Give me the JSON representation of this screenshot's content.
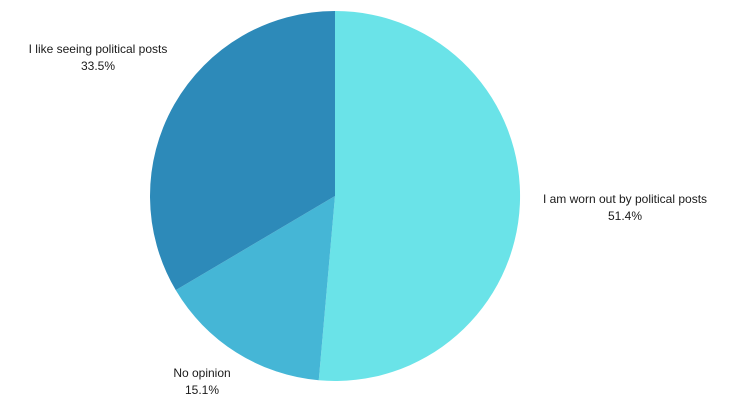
{
  "chart_data": {
    "type": "pie",
    "title": "",
    "start_angle_deg": 0,
    "direction": "clockwise",
    "legend": "none",
    "slices": [
      {
        "label": "I am worn out by political posts",
        "value": 51.4,
        "value_label": "51.4%",
        "color": "#6ae3e8"
      },
      {
        "label": "No opinion",
        "value": 15.1,
        "value_label": "15.1%",
        "color": "#45b6d6"
      },
      {
        "label": "I like seeing political posts",
        "value": 33.5,
        "value_label": "33.5%",
        "color": "#2d8ab9"
      }
    ]
  }
}
